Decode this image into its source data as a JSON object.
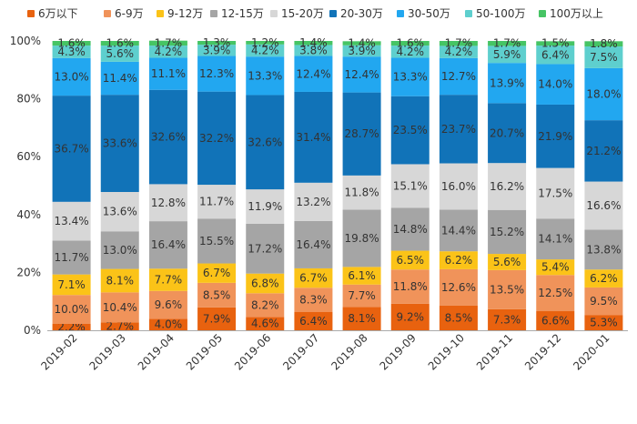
{
  "chart_data": {
    "type": "bar",
    "stacked": true,
    "normalized": true,
    "title": "",
    "xlabel": "",
    "ylabel": "",
    "ylim": [
      0,
      100
    ],
    "y_ticks": [
      "0%",
      "20%",
      "40%",
      "60%",
      "80%",
      "100%"
    ],
    "grid": false,
    "legend_position": "top",
    "categories": [
      "2019-02",
      "2019-03",
      "2019-04",
      "2019-05",
      "2019-06",
      "2019-07",
      "2019-08",
      "2019-09",
      "2019-10",
      "2019-11",
      "2019-12",
      "2020-01"
    ],
    "series": [
      {
        "name": "6万以下",
        "color": "#e8620f",
        "values": [
          2.2,
          2.7,
          4.0,
          7.9,
          4.6,
          6.4,
          8.1,
          9.2,
          8.5,
          7.3,
          6.6,
          5.3
        ]
      },
      {
        "name": "6-9万",
        "color": "#f0935a",
        "values": [
          10.0,
          10.4,
          9.6,
          8.5,
          8.2,
          8.3,
          7.7,
          11.8,
          12.6,
          13.5,
          12.5,
          9.5
        ]
      },
      {
        "name": "9-12万",
        "color": "#fbc318",
        "values": [
          7.1,
          8.1,
          7.7,
          6.7,
          6.8,
          6.7,
          6.1,
          6.5,
          6.2,
          5.6,
          5.4,
          6.2
        ]
      },
      {
        "name": "12-15万",
        "color": "#a5a5a5",
        "values": [
          11.7,
          13.0,
          16.4,
          15.5,
          17.2,
          16.4,
          19.8,
          14.8,
          14.4,
          15.2,
          14.1,
          13.8
        ]
      },
      {
        "name": "15-20万",
        "color": "#d7d7d7",
        "values": [
          13.4,
          13.6,
          12.8,
          11.7,
          11.9,
          13.2,
          11.8,
          15.1,
          16.0,
          16.2,
          17.5,
          16.6
        ]
      },
      {
        "name": "20-30万",
        "color": "#1173b8",
        "values": [
          36.7,
          33.6,
          32.6,
          32.2,
          32.6,
          31.4,
          28.7,
          23.5,
          23.7,
          20.7,
          21.9,
          21.2
        ]
      },
      {
        "name": "30-50万",
        "color": "#22a7f0",
        "values": [
          13.0,
          11.4,
          11.1,
          12.3,
          13.3,
          12.4,
          12.4,
          13.3,
          12.7,
          13.9,
          14.0,
          18.0
        ]
      },
      {
        "name": "50-100万",
        "color": "#5ecfce",
        "values": [
          4.3,
          5.6,
          4.2,
          3.9,
          4.2,
          3.8,
          3.9,
          4.2,
          4.2,
          5.9,
          6.4,
          7.5
        ]
      },
      {
        "name": "100万以上",
        "color": "#46c464",
        "values": [
          1.6,
          1.6,
          1.7,
          1.3,
          1.2,
          1.4,
          1.4,
          1.6,
          1.7,
          1.7,
          1.5,
          1.8
        ]
      }
    ],
    "text_color": "#333333"
  }
}
